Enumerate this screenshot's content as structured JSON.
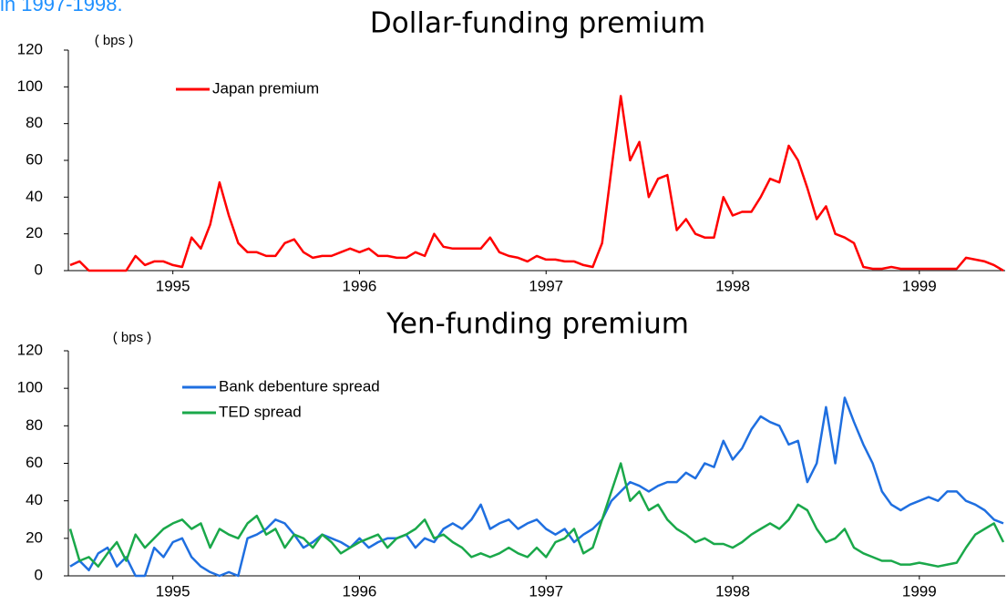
{
  "header": {
    "text": "in 1997-1998."
  },
  "chart_data": [
    {
      "type": "line",
      "title": "Dollar-funding premium",
      "y_label": "( bps )",
      "x": [
        1994.95,
        1995.0,
        1995.05,
        1995.1,
        1995.15,
        1995.2,
        1995.25,
        1995.3,
        1995.35,
        1995.4,
        1995.45,
        1995.5,
        1995.55,
        1995.6,
        1995.65,
        1995.7,
        1995.75,
        1995.8,
        1995.85,
        1995.9,
        1995.95,
        1996.0,
        1996.05,
        1996.1,
        1996.15,
        1996.2,
        1996.25,
        1996.3,
        1996.35,
        1996.4,
        1996.45,
        1996.5,
        1996.55,
        1996.6,
        1996.65,
        1996.7,
        1996.75,
        1996.8,
        1996.85,
        1996.9,
        1996.95,
        1997.0,
        1997.05,
        1997.1,
        1997.15,
        1997.2,
        1997.25,
        1997.3,
        1997.35,
        1997.4,
        1997.45,
        1997.5,
        1997.55,
        1997.6,
        1997.65,
        1997.7,
        1997.75,
        1997.8,
        1997.85,
        1997.9,
        1997.95,
        1998.0,
        1998.05,
        1998.1,
        1998.15,
        1998.2,
        1998.25,
        1998.3,
        1998.35,
        1998.4,
        1998.45,
        1998.5,
        1998.55,
        1998.6,
        1998.65,
        1998.7,
        1998.75,
        1998.8,
        1998.85,
        1998.9,
        1998.95,
        1999.0,
        1999.05,
        1999.1,
        1999.15,
        1999.2,
        1999.25,
        1999.3,
        1999.35,
        1999.4,
        1999.45,
        1999.5,
        1999.55,
        1999.6,
        1999.65,
        1999.7,
        1999.75,
        1999.8,
        1999.85,
        1999.9,
        1999.95
      ],
      "series": [
        {
          "name": "Japan premium",
          "color": "#ff0000",
          "values": [
            3,
            5,
            0,
            0,
            0,
            0,
            0,
            8,
            3,
            5,
            5,
            3,
            2,
            18,
            12,
            25,
            48,
            30,
            15,
            10,
            10,
            8,
            8,
            15,
            17,
            10,
            7,
            8,
            8,
            10,
            12,
            10,
            12,
            8,
            8,
            7,
            7,
            10,
            8,
            20,
            13,
            12,
            12,
            12,
            12,
            18,
            10,
            8,
            7,
            5,
            8,
            6,
            6,
            5,
            5,
            3,
            2,
            15,
            55,
            95,
            60,
            70,
            40,
            50,
            52,
            22,
            28,
            20,
            18,
            18,
            40,
            30,
            32,
            32,
            40,
            50,
            48,
            68,
            60,
            45,
            28,
            35,
            20,
            18,
            15,
            2,
            1,
            1,
            2,
            1,
            1,
            1,
            1,
            1,
            1,
            1,
            7,
            6,
            5,
            3,
            0
          ]
        }
      ],
      "xlim": [
        1994.94,
        1999.96
      ],
      "ylim": [
        0,
        120
      ],
      "xticks": [
        {
          "value": 1995.5,
          "label": "1995"
        },
        {
          "value": 1996.5,
          "label": "1996"
        },
        {
          "value": 1997.5,
          "label": "1997"
        },
        {
          "value": 1998.5,
          "label": "1998"
        },
        {
          "value": 1999.5,
          "label": "1999"
        }
      ],
      "yticks": [
        0,
        20,
        40,
        60,
        80,
        100,
        120
      ],
      "grid": false,
      "legend": "upper left"
    },
    {
      "type": "line",
      "title": "Yen-funding premium",
      "y_label": "( bps )",
      "x": [
        1994.95,
        1995.0,
        1995.05,
        1995.1,
        1995.15,
        1995.2,
        1995.25,
        1995.3,
        1995.35,
        1995.4,
        1995.45,
        1995.5,
        1995.55,
        1995.6,
        1995.65,
        1995.7,
        1995.75,
        1995.8,
        1995.85,
        1995.9,
        1995.95,
        1996.0,
        1996.05,
        1996.1,
        1996.15,
        1996.2,
        1996.25,
        1996.3,
        1996.35,
        1996.4,
        1996.45,
        1996.5,
        1996.55,
        1996.6,
        1996.65,
        1996.7,
        1996.75,
        1996.8,
        1996.85,
        1996.9,
        1996.95,
        1997.0,
        1997.05,
        1997.1,
        1997.15,
        1997.2,
        1997.25,
        1997.3,
        1997.35,
        1997.4,
        1997.45,
        1997.5,
        1997.55,
        1997.6,
        1997.65,
        1997.7,
        1997.75,
        1997.8,
        1997.85,
        1997.9,
        1997.95,
        1998.0,
        1998.05,
        1998.1,
        1998.15,
        1998.2,
        1998.25,
        1998.3,
        1998.35,
        1998.4,
        1998.45,
        1998.5,
        1998.55,
        1998.6,
        1998.65,
        1998.7,
        1998.75,
        1998.8,
        1998.85,
        1998.9,
        1998.95,
        1999.0,
        1999.05,
        1999.1,
        1999.15,
        1999.2,
        1999.25,
        1999.3,
        1999.35,
        1999.4,
        1999.45,
        1999.5,
        1999.55,
        1999.6,
        1999.65,
        1999.7,
        1999.75,
        1999.8,
        1999.85,
        1999.9,
        1999.95
      ],
      "series": [
        {
          "name": "Bank debenture spread",
          "color": "#1f6fe0",
          "values": [
            5,
            8,
            3,
            12,
            15,
            5,
            10,
            0,
            0,
            15,
            10,
            18,
            20,
            10,
            5,
            2,
            0,
            2,
            0,
            20,
            22,
            25,
            30,
            28,
            22,
            15,
            18,
            22,
            20,
            18,
            15,
            20,
            15,
            18,
            20,
            20,
            22,
            15,
            20,
            18,
            25,
            28,
            25,
            30,
            38,
            25,
            28,
            30,
            25,
            28,
            30,
            25,
            22,
            25,
            18,
            22,
            25,
            30,
            40,
            45,
            50,
            48,
            45,
            48,
            50,
            50,
            55,
            52,
            60,
            58,
            72,
            62,
            68,
            78,
            85,
            82,
            80,
            70,
            72,
            50,
            60,
            90,
            60,
            95,
            82,
            70,
            60,
            45,
            38,
            35,
            38,
            40,
            42,
            40,
            45,
            45,
            40,
            38,
            35,
            30,
            28
          ]
        },
        {
          "name": "TED spread",
          "color": "#1aa84a",
          "values": [
            25,
            8,
            10,
            5,
            12,
            18,
            8,
            22,
            15,
            20,
            25,
            28,
            30,
            25,
            28,
            15,
            25,
            22,
            20,
            28,
            32,
            22,
            25,
            15,
            22,
            20,
            15,
            22,
            18,
            12,
            15,
            18,
            20,
            22,
            15,
            20,
            22,
            25,
            30,
            20,
            22,
            18,
            15,
            10,
            12,
            10,
            12,
            15,
            12,
            10,
            15,
            10,
            18,
            20,
            25,
            12,
            15,
            30,
            45,
            60,
            40,
            45,
            35,
            38,
            30,
            25,
            22,
            18,
            20,
            17,
            17,
            15,
            18,
            22,
            25,
            28,
            25,
            30,
            38,
            35,
            25,
            18,
            20,
            25,
            15,
            12,
            10,
            8,
            8,
            6,
            6,
            7,
            6,
            5,
            6,
            7,
            15,
            22,
            25,
            28,
            18
          ]
        }
      ],
      "xlim": [
        1994.94,
        1999.96
      ],
      "ylim": [
        0,
        120
      ],
      "xticks": [
        {
          "value": 1995.5,
          "label": "1995"
        },
        {
          "value": 1996.5,
          "label": "1996"
        },
        {
          "value": 1997.5,
          "label": "1997"
        },
        {
          "value": 1998.5,
          "label": "1998"
        },
        {
          "value": 1999.5,
          "label": "1999"
        }
      ],
      "yticks": [
        0,
        20,
        40,
        60,
        80,
        100,
        120
      ],
      "grid": false,
      "legend": "upper left"
    }
  ]
}
